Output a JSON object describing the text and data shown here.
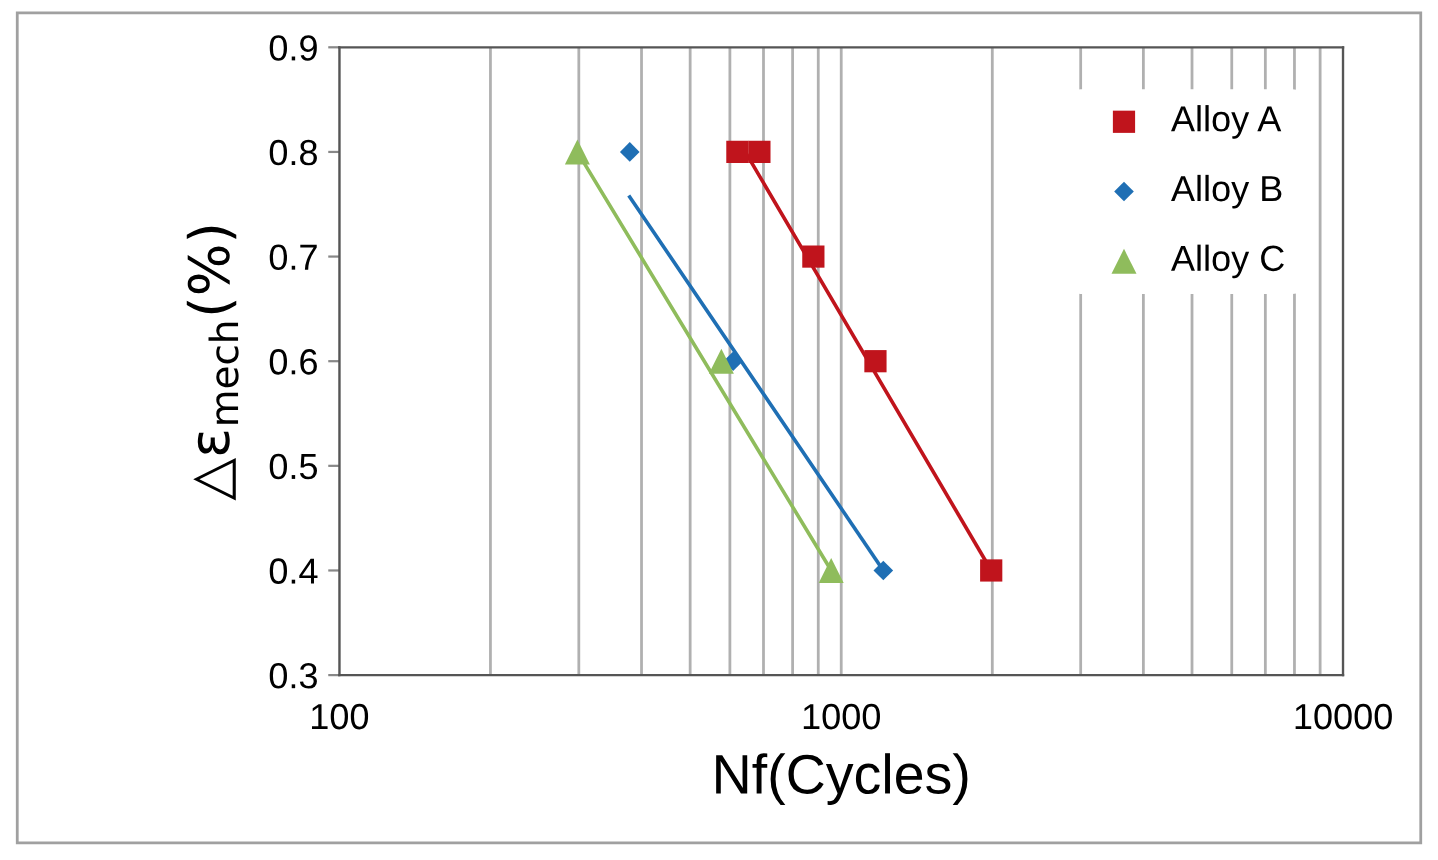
{
  "chart_data": {
    "type": "scatter",
    "xlabel": "Nf(Cycles)",
    "ylabel": "△ε$_{mech}$(%)",
    "log": "x",
    "xlim": [
      100,
      10000
    ],
    "ylim": [
      0.3,
      0.9
    ],
    "xticks": [
      100,
      {
        "value": 200,
        "label": null
      },
      {
        "value": 300,
        "label": null
      },
      {
        "value": 400,
        "label": null
      },
      {
        "value": 500,
        "label": null
      },
      {
        "value": 600,
        "label": null
      },
      {
        "value": 700,
        "label": null
      },
      {
        "value": 800,
        "label": null
      },
      {
        "value": 900,
        "label": null
      },
      1000,
      {
        "value": 2000,
        "label": null
      },
      {
        "value": 3000,
        "label": null
      },
      {
        "value": 4000,
        "label": null
      },
      {
        "value": 5000,
        "label": null
      },
      {
        "value": 6000,
        "label": null
      },
      {
        "value": 7000,
        "label": null
      },
      {
        "value": 8000,
        "label": null
      },
      {
        "value": 9000,
        "label": null
      },
      10000
    ],
    "yticks": [
      0.3,
      0.4,
      0.5,
      0.6,
      0.7,
      0.8,
      0.9
    ],
    "grid": "x",
    "legend": "top right",
    "series": [
      {
        "name": "Alloy A",
        "color": "#c0141c",
        "marker": "square",
        "x": [
          621,
          687,
          880,
          1170,
          1990
        ],
        "values": [
          0.8,
          0.8,
          0.7,
          0.6,
          0.4
        ]
      },
      {
        "name": "Alloy B",
        "color": "#1f6fb4",
        "marker": "diamond",
        "x": [
          379,
          609,
          1213
        ],
        "values": [
          0.8,
          0.6,
          0.4
        ]
      },
      {
        "name": "Alloy C",
        "color": "#8fbc5c",
        "marker": "triangle",
        "x": [
          298,
          577,
          955
        ],
        "values": [
          0.8,
          0.6,
          0.4
        ]
      },
      {
        "type": "line",
        "color": "#c0141c",
        "marker": "none",
        "x": [
          644,
          1990
        ],
        "values": [
          0.8,
          0.4
        ]
      },
      {
        "type": "line",
        "color": "#1f6fb4",
        "marker": "none",
        "x": [
          379,
          1213
        ],
        "values": [
          0.757,
          0.4
        ]
      },
      {
        "type": "line",
        "color": "#8fbc5c",
        "marker": "none",
        "x": [
          298,
          955
        ],
        "values": [
          0.8,
          0.4
        ]
      }
    ]
  }
}
